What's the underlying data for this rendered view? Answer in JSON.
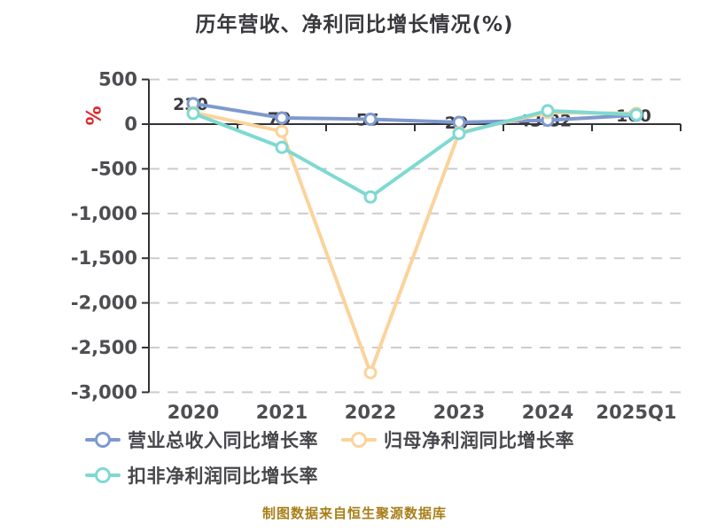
{
  "title": "历年营收、净利同比增长情况(%)",
  "y_axis": {
    "name": "%",
    "name_color": "#e0262b",
    "ticks": [
      "500",
      "0",
      "-500",
      "-1,000",
      "-1,500",
      "-2,000",
      "-2,500",
      "-3,000"
    ],
    "tick_values": [
      500,
      0,
      -500,
      -1000,
      -1500,
      -2000,
      -2500,
      -3000
    ]
  },
  "x_axis": {
    "ticks": [
      "2020",
      "2021",
      "2022",
      "2023",
      "2024",
      "2025Q1"
    ]
  },
  "chart_data": {
    "type": "line",
    "title": "历年营收、净利同比增长情况(%)",
    "xlabel": "",
    "ylabel": "%",
    "ylim": [
      -3000,
      500
    ],
    "grid": "horizontal-dashed",
    "legend_position": "bottom",
    "categories": [
      "2020",
      "2021",
      "2022",
      "2023",
      "2024",
      "2025Q1"
    ],
    "series": [
      {
        "name": "营业总收入同比增长率",
        "color": "#7e99ce",
        "values": [
          230,
          70,
          55,
          20,
          43.82,
          100
        ]
      },
      {
        "name": "归母净利润同比增长率",
        "color": "#fbd39b",
        "values": [
          130,
          -80,
          -2780,
          -95,
          130,
          120
        ]
      },
      {
        "name": "扣非净利润同比增长率",
        "color": "#7ed9d2",
        "values": [
          120,
          -260,
          -815,
          -105,
          150,
          105
        ]
      }
    ],
    "visible_point_label": {
      "series_index": 0,
      "category_index": 4,
      "text": "43.82"
    }
  },
  "legend": {
    "items": [
      {
        "label": "营业总收入同比增长率",
        "color": "#7e99ce"
      },
      {
        "label": "归母净利润同比增长率",
        "color": "#fbd39b"
      },
      {
        "label": "扣非净利润同比增长率",
        "color": "#7ed9d2"
      }
    ]
  },
  "footer": {
    "text": "制图数据来自恒生聚源数据库",
    "color": "#a87e18"
  },
  "colors": {
    "axis": "#333338",
    "gridline": "#cccccc",
    "tick_label": "#4d4d52",
    "title": "#38383c",
    "marker_fill": "#ffffff"
  }
}
